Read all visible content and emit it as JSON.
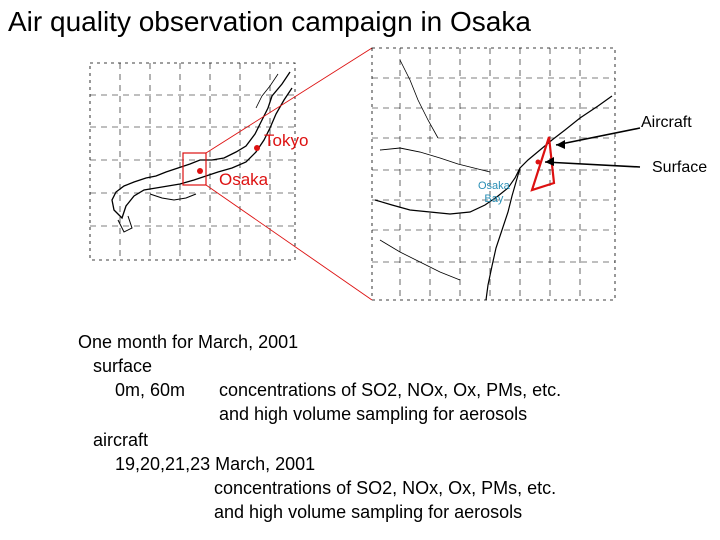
{
  "title": "Air quality observation campaign in Osaka",
  "map": {
    "label_tokyo": "Tokyo",
    "label_osaka": "Osaka",
    "bay_line1": "Osaka",
    "bay_line2": "Bay",
    "label_aircraft": "Aircraft",
    "label_surface": "Surface",
    "colors": {
      "highlight": "#dd1111",
      "bay_text": "#2a8fb5",
      "grid": "#000000"
    }
  },
  "summary": {
    "period": "One month for March, 2001",
    "surface_heading": "surface",
    "surface_levels": "0m, 60m",
    "surface_desc_1": "concentrations of SO2, NOx, Ox, PMs, etc.",
    "surface_desc_2": "and high volume sampling for aerosols",
    "aircraft_heading": "aircraft",
    "aircraft_dates": "19,20,21,23 March, 2001",
    "aircraft_desc_1": "concentrations of SO2, NOx, Ox, PMs, etc.",
    "aircraft_desc_2": "and high volume sampling for aerosols"
  }
}
